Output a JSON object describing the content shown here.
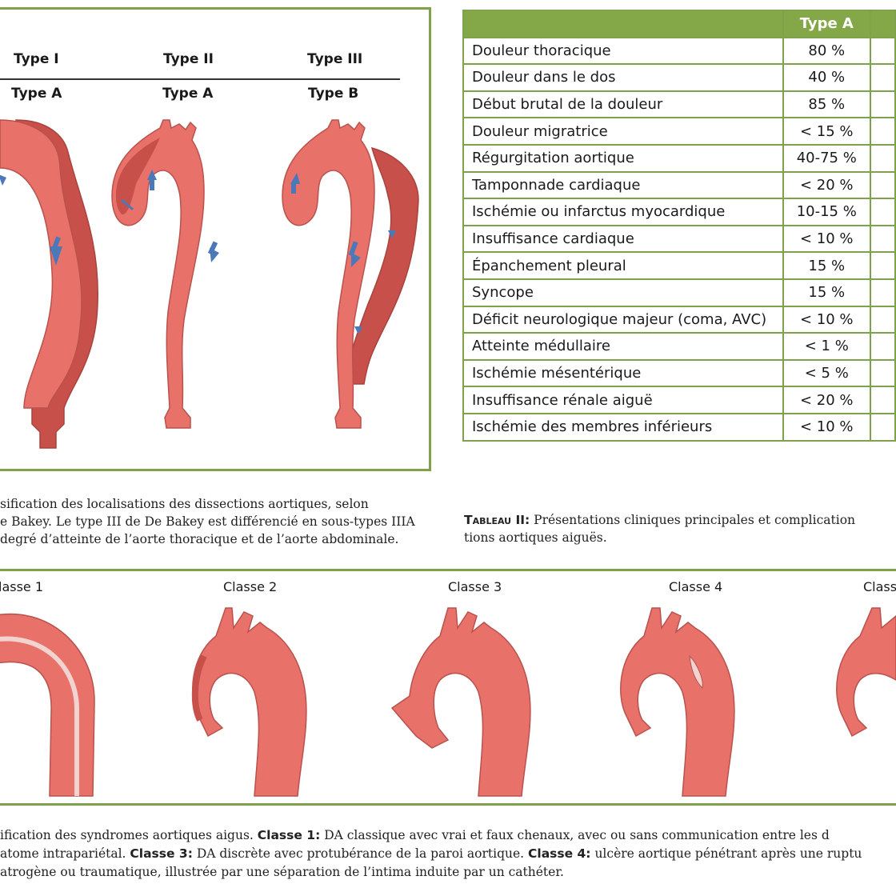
{
  "figure1": {
    "debakey_types": [
      "Type I",
      "Type II",
      "Type III"
    ],
    "stanford_types": [
      "Type A",
      "Type A",
      "Type B"
    ],
    "caption_lines": [
      "sification des localisations des dissections aortiques, selon",
      "e Bakey. Le type III de De Bakey est différencié en sous-types IIIA",
      "degré d’atteinte de l’aorte thoracique et de l’aorte abdominale."
    ]
  },
  "table": {
    "header": "Type A",
    "rows": [
      {
        "label": "Douleur thoracique",
        "value": "80 %"
      },
      {
        "label": "Douleur dans le dos",
        "value": "40 %"
      },
      {
        "label": "Début brutal de la douleur",
        "value": "85 %"
      },
      {
        "label": "Douleur migratrice",
        "value": "< 15 %"
      },
      {
        "label": "Régurgitation aortique",
        "value": "40-75 %"
      },
      {
        "label": "Tamponnade cardiaque",
        "value": "< 20 %"
      },
      {
        "label": "Ischémie ou infarctus myocardique",
        "value": "10-15 %"
      },
      {
        "label": "Insuffisance cardiaque",
        "value": "< 10 %"
      },
      {
        "label": "Épanchement pleural",
        "value": "15 %"
      },
      {
        "label": "Syncope",
        "value": "15 %"
      },
      {
        "label": "Déficit neurologique majeur (coma, AVC)",
        "value": "< 10 %"
      },
      {
        "label": "Atteinte médullaire",
        "value": "< 1 %"
      },
      {
        "label": "Ischémie mésentérique",
        "value": "< 5 %"
      },
      {
        "label": "Insuffisance rénale aiguë",
        "value": "< 20 %"
      },
      {
        "label": "Ischémie des membres inférieurs",
        "value": "< 10 %"
      }
    ],
    "caption_title": "Tableau II:",
    "caption_line1": " Présentations cliniques principales et complication",
    "caption_line2": "tions aortiques aiguës."
  },
  "figure3": {
    "classes": [
      "lasse 1",
      "Classe 2",
      "Classe 3",
      "Classe 4",
      "Class"
    ],
    "caption": {
      "l1_a": "ification des syndromes aortiques aigus. ",
      "l1_b": "Classe 1:",
      "l1_c": " DA classique avec vrai et faux chenaux, avec ou sans communication entre les d",
      "l2_a": "atome intrapariétal. ",
      "l2_b": "Classe 3:",
      "l2_c": " DA discrète avec protubérance de la paroi aortique. ",
      "l2_d": "Classe 4:",
      "l2_e": " ulcère aortique pénétrant après une ruptu",
      "l3": "atrogène ou traumatique, illustrée par une séparation de l’intima induite par un cathéter."
    }
  },
  "colors": {
    "accent_green": "#7ea24a",
    "aorta": "#e8716a",
    "false_lumen": "#c8504a",
    "arrow": "#4a78b8"
  }
}
